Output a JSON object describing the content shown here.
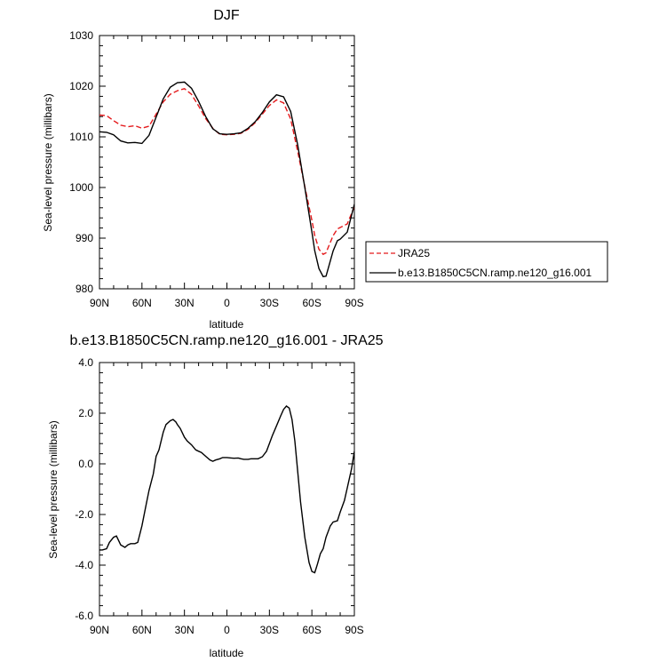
{
  "chart_data": [
    {
      "type": "line",
      "title": "DJF",
      "xlabel": "latitude",
      "ylabel": "Sea-level pressure (millibars)",
      "xlim": [
        90,
        -90
      ],
      "ylim": [
        980,
        1030
      ],
      "xtick_values": [
        90,
        60,
        30,
        0,
        -30,
        -60,
        -90
      ],
      "xtick_labels": [
        "90N",
        "60N",
        "30N",
        "0",
        "30S",
        "60S",
        "90S"
      ],
      "ytick_values": [
        980,
        990,
        1000,
        1010,
        1020,
        1030
      ],
      "ytick_labels": [
        "980",
        "990",
        "1000",
        "1010",
        "1020",
        "1030"
      ],
      "grid": false,
      "legend_placement": "right",
      "series": [
        {
          "name": "JRA25",
          "color": "#e41a1c",
          "dash": "dashed",
          "x": [
            90,
            85,
            80,
            75,
            70,
            65,
            60,
            55,
            50,
            45,
            40,
            35,
            30,
            25,
            20,
            15,
            10,
            5,
            0,
            -5,
            -10,
            -15,
            -20,
            -25,
            -30,
            -35,
            -40,
            -45,
            -50,
            -55,
            -60,
            -62,
            -65,
            -68,
            -70,
            -72,
            -75,
            -78,
            -80,
            -85,
            -90
          ],
          "y": [
            1014.3,
            1014.2,
            1013.2,
            1012.3,
            1012.0,
            1012.2,
            1011.7,
            1012.1,
            1014.5,
            1016.9,
            1018.4,
            1019.1,
            1019.5,
            1018.4,
            1016.1,
            1013.6,
            1011.7,
            1010.5,
            1010.4,
            1010.5,
            1010.7,
            1011.5,
            1012.8,
            1014.5,
            1016.2,
            1017.3,
            1016.7,
            1013.5,
            1007.1,
            1000.2,
            993.5,
            990.5,
            987.8,
            986.8,
            987.1,
            988.5,
            990.5,
            991.8,
            992.1,
            992.8,
            996.2
          ]
        },
        {
          "name": "b.e13.B1850C5CN.ramp.ne120_g16.001",
          "color": "#000000",
          "dash": "solid",
          "x": [
            90,
            85,
            80,
            75,
            70,
            65,
            60,
            55,
            50,
            45,
            40,
            35,
            30,
            25,
            20,
            15,
            10,
            5,
            0,
            -5,
            -10,
            -15,
            -20,
            -25,
            -30,
            -35,
            -40,
            -45,
            -50,
            -55,
            -60,
            -62,
            -65,
            -68,
            -70,
            -72,
            -75,
            -78,
            -80,
            -85,
            -90
          ],
          "y": [
            1011.0,
            1010.9,
            1010.4,
            1009.2,
            1008.8,
            1008.9,
            1008.7,
            1010.3,
            1013.9,
            1017.5,
            1019.8,
            1020.7,
            1020.8,
            1019.6,
            1017.0,
            1014.0,
            1011.6,
            1010.6,
            1010.5,
            1010.6,
            1010.8,
            1011.7,
            1013.0,
            1014.8,
            1016.9,
            1018.3,
            1017.9,
            1015.0,
            1008.4,
            1000.0,
            991.2,
            987.5,
            984.0,
            982.4,
            982.5,
            984.5,
            987.5,
            989.5,
            989.8,
            991.2,
            996.7
          ]
        }
      ]
    },
    {
      "type": "line",
      "title": "b.e13.B1850C5CN.ramp.ne120_g16.001 - JRA25",
      "xlabel": "latitude",
      "ylabel": "Sea-level pressure (millibars)",
      "xlim": [
        90,
        -90
      ],
      "ylim": [
        -6,
        4
      ],
      "xtick_values": [
        90,
        60,
        30,
        0,
        -30,
        -60,
        -90
      ],
      "xtick_labels": [
        "90N",
        "60N",
        "30N",
        "0",
        "30S",
        "60S",
        "90S"
      ],
      "ytick_values": [
        -6,
        -4,
        -2,
        0,
        2,
        4
      ],
      "ytick_labels": [
        "-6.0",
        "-4.0",
        "-2.0",
        "0.0",
        "2.0",
        "4.0"
      ],
      "grid": false,
      "series": [
        {
          "color": "#000000",
          "dash": "solid",
          "x": [
            90,
            88,
            85,
            83,
            80,
            78,
            75,
            72,
            70,
            68,
            65,
            63,
            60,
            57,
            55,
            52,
            50,
            48,
            45,
            43,
            40,
            38,
            36,
            35,
            33,
            30,
            28,
            25,
            22,
            20,
            18,
            15,
            12,
            10,
            8,
            5,
            3,
            0,
            -3,
            -5,
            -8,
            -10,
            -12,
            -15,
            -17,
            -20,
            -22,
            -25,
            -28,
            -30,
            -32,
            -35,
            -38,
            -40,
            -42,
            -44,
            -46,
            -48,
            -50,
            -52,
            -55,
            -58,
            -60,
            -62,
            -64,
            -66,
            -68,
            -70,
            -73,
            -75,
            -78,
            -80,
            -83,
            -85,
            -88,
            -90
          ],
          "y": [
            -3.4,
            -3.4,
            -3.35,
            -3.1,
            -2.9,
            -2.85,
            -3.2,
            -3.3,
            -3.2,
            -3.15,
            -3.15,
            -3.1,
            -2.45,
            -1.6,
            -1.05,
            -0.4,
            0.3,
            0.55,
            1.25,
            1.55,
            1.7,
            1.75,
            1.65,
            1.55,
            1.4,
            1.05,
            0.9,
            0.75,
            0.55,
            0.5,
            0.45,
            0.3,
            0.15,
            0.1,
            0.15,
            0.2,
            0.25,
            0.25,
            0.23,
            0.22,
            0.23,
            0.2,
            0.18,
            0.18,
            0.2,
            0.2,
            0.2,
            0.28,
            0.5,
            0.8,
            1.1,
            1.5,
            1.9,
            2.15,
            2.28,
            2.2,
            1.75,
            0.9,
            -0.3,
            -1.5,
            -2.9,
            -3.9,
            -4.25,
            -4.3,
            -3.95,
            -3.55,
            -3.35,
            -2.9,
            -2.45,
            -2.3,
            -2.25,
            -1.9,
            -1.45,
            -0.95,
            -0.2,
            0.5
          ]
        }
      ]
    }
  ]
}
